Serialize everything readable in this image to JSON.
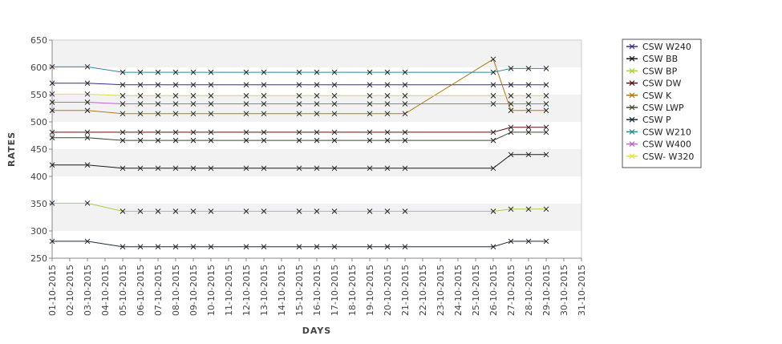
{
  "chart_data": {
    "type": "line",
    "xlabel": "DAYS",
    "ylabel": "RATES",
    "ylim": [
      250,
      650
    ],
    "yticks": [
      250,
      300,
      350,
      400,
      450,
      500,
      550,
      600,
      650
    ],
    "grid": "alternating horizontal bands",
    "legend_position": "right",
    "x_ticks": [
      "01-10-2015",
      "02-10-2015",
      "03-10-2015",
      "04-10-2015",
      "05-10-2015",
      "06-10-2015",
      "07-10-2015",
      "08-10-2015",
      "09-10-2015",
      "10-10-2015",
      "11-10-2015",
      "12-10-2015",
      "13-10-2015",
      "14-10-2015",
      "15-10-2015",
      "16-10-2015",
      "17-10-2015",
      "18-10-2015",
      "19-10-2015",
      "20-10-2015",
      "21-10-2015",
      "22-10-2015",
      "23-10-2015",
      "24-10-2015",
      "25-10-2015",
      "26-10-2015",
      "27-10-2015",
      "28-10-2015",
      "29-10-2015",
      "30-10-2015",
      "31-10-2015"
    ],
    "x": [
      "01-10-2015",
      "03-10-2015",
      "05-10-2015",
      "06-10-2015",
      "07-10-2015",
      "08-10-2015",
      "09-10-2015",
      "10-10-2015",
      "12-10-2015",
      "13-10-2015",
      "15-10-2015",
      "16-10-2015",
      "17-10-2015",
      "19-10-2015",
      "20-10-2015",
      "21-10-2015",
      "26-10-2015",
      "27-10-2015",
      "28-10-2015",
      "29-10-2015"
    ],
    "series": [
      {
        "name": "CSW  W240",
        "color": "#3a2a8a",
        "values": [
          571,
          571,
          568,
          568,
          568,
          568,
          568,
          568,
          568,
          568,
          568,
          568,
          568,
          568,
          568,
          568,
          568,
          568,
          568,
          568
        ]
      },
      {
        "name": "CSW BB",
        "color": "#1a1a1a",
        "values": [
          421,
          421,
          415,
          415,
          415,
          415,
          415,
          415,
          415,
          415,
          415,
          415,
          415,
          415,
          415,
          415,
          415,
          440,
          440,
          440
        ]
      },
      {
        "name": "CSW BP",
        "color": "#a8d040",
        "values": [
          351,
          351,
          336,
          336,
          336,
          336,
          336,
          336,
          336,
          336,
          336,
          336,
          336,
          336,
          336,
          336,
          336,
          340,
          340,
          340
        ]
      },
      {
        "name": "CSW DW",
        "color": "#5a1010",
        "values": [
          481,
          481,
          481,
          481,
          481,
          481,
          481,
          481,
          481,
          481,
          481,
          481,
          481,
          481,
          481,
          481,
          481,
          490,
          490,
          490
        ]
      },
      {
        "name": "CSW K",
        "color": "#b07a10",
        "values": [
          521,
          521,
          515,
          515,
          515,
          515,
          515,
          515,
          515,
          515,
          515,
          515,
          515,
          515,
          515,
          515,
          615,
          521,
          521,
          521
        ]
      },
      {
        "name": "CSW LWP",
        "color": "#3a4a2a",
        "values": [
          471,
          471,
          466,
          466,
          466,
          466,
          466,
          466,
          466,
          466,
          466,
          466,
          466,
          466,
          466,
          466,
          466,
          481,
          481,
          481
        ]
      },
      {
        "name": "CSW P",
        "color": "#1a2a3a",
        "values": [
          281,
          281,
          271,
          271,
          271,
          271,
          271,
          271,
          271,
          271,
          271,
          271,
          271,
          271,
          271,
          271,
          271,
          281,
          281,
          281
        ]
      },
      {
        "name": "CSW W210",
        "color": "#2a8aa0",
        "values": [
          601,
          601,
          591,
          591,
          591,
          591,
          591,
          591,
          591,
          591,
          591,
          591,
          591,
          591,
          591,
          591,
          591,
          598,
          598,
          598
        ]
      },
      {
        "name": "CSW W400",
        "color": "#c060c8",
        "values": [
          536,
          536,
          533,
          533,
          533,
          533,
          533,
          533,
          533,
          533,
          533,
          533,
          533,
          533,
          533,
          533,
          533,
          533,
          533,
          533
        ]
      },
      {
        "name": "CSW- W320",
        "color": "#e0e040",
        "values": [
          551,
          551,
          548,
          548,
          548,
          548,
          548,
          548,
          548,
          548,
          548,
          548,
          548,
          548,
          548,
          548,
          548,
          548,
          548,
          548
        ]
      }
    ]
  }
}
